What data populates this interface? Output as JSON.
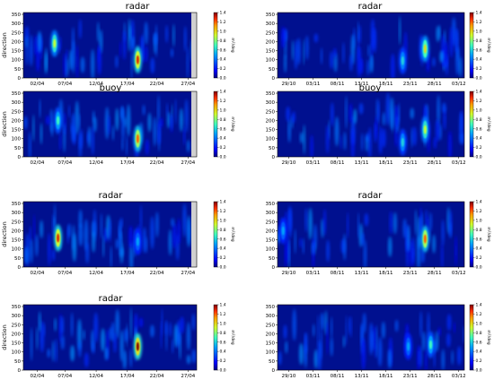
{
  "chart_data": [
    {
      "type": "heatmap",
      "title": "radar",
      "ylabel": "direction",
      "cb_label": "m²/deg",
      "ylim": [
        0,
        360
      ],
      "clim": [
        0,
        1.4
      ],
      "yticks": [
        "0",
        "50",
        "100",
        "150",
        "200",
        "250",
        "300",
        "350"
      ],
      "xticks": [
        "02/04",
        "07/04",
        "12/04",
        "17/04",
        "22/04",
        "27/04"
      ],
      "cbticks": [
        "0.0",
        "0.2",
        "0.4",
        "0.6",
        "0.8",
        "1.0",
        "1.2",
        "1.4"
      ],
      "hotspots": [
        {
          "date": "04/04",
          "direction": 190,
          "value": 0.9
        },
        {
          "date": "17/04",
          "direction": 100,
          "value": 1.3
        }
      ]
    },
    {
      "type": "heatmap",
      "title": "radar",
      "ylabel": "",
      "cb_label": "m²/deg",
      "ylim": [
        0,
        360
      ],
      "clim": [
        0,
        1.4
      ],
      "yticks": [
        "0",
        "50",
        "100",
        "150",
        "200",
        "250",
        "300",
        "350"
      ],
      "xticks": [
        "29/10",
        "03/11",
        "08/11",
        "13/11",
        "18/11",
        "23/11",
        "28/11",
        "03/12"
      ],
      "cbticks": [
        "0.0",
        "0.2",
        "0.4",
        "0.6",
        "0.8",
        "1.0",
        "1.2",
        "1.4"
      ],
      "hotspots": [
        {
          "date": "27/11",
          "direction": 160,
          "value": 1.0
        },
        {
          "date": "22/11",
          "direction": 95,
          "value": 0.6
        }
      ]
    },
    {
      "type": "heatmap",
      "title": "buoy",
      "ylabel": "direction",
      "cb_label": "m²/deg",
      "ylim": [
        0,
        360
      ],
      "clim": [
        0,
        1.4
      ],
      "yticks": [
        "0",
        "50",
        "100",
        "150",
        "200",
        "250",
        "300",
        "350"
      ],
      "xticks": [
        "02/04",
        "07/04",
        "12/04",
        "17/04",
        "22/04",
        "27/04"
      ],
      "cbticks": [
        "0.0",
        "0.2",
        "0.4",
        "0.6",
        "0.8",
        "1.0",
        "1.2",
        "1.4"
      ],
      "hotspots": [
        {
          "date": "05/04",
          "direction": 200,
          "value": 0.7
        },
        {
          "date": "17/04",
          "direction": 100,
          "value": 1.2
        }
      ]
    },
    {
      "type": "heatmap",
      "title": "buoy",
      "ylabel": "",
      "cb_label": "m²/deg",
      "ylim": [
        0,
        360
      ],
      "clim": [
        0,
        1.4
      ],
      "yticks": [
        "0",
        "50",
        "100",
        "150",
        "200",
        "250",
        "300",
        "350"
      ],
      "xticks": [
        "29/10",
        "03/11",
        "08/11",
        "13/11",
        "18/11",
        "23/11",
        "28/11",
        "03/12"
      ],
      "cbticks": [
        "0.0",
        "0.2",
        "0.4",
        "0.6",
        "0.8",
        "1.0",
        "1.2",
        "1.4"
      ],
      "hotspots": [
        {
          "date": "27/11",
          "direction": 150,
          "value": 0.9
        },
        {
          "date": "22/11",
          "direction": 80,
          "value": 0.6
        }
      ]
    },
    {
      "type": "heatmap",
      "title": "radar",
      "ylabel": "direction",
      "cb_label": "m²/deg",
      "ylim": [
        0,
        360
      ],
      "clim": [
        0,
        1.4
      ],
      "yticks": [
        "0",
        "50",
        "100",
        "150",
        "200",
        "250",
        "300",
        "350"
      ],
      "xticks": [
        "02/04",
        "07/04",
        "12/04",
        "17/04",
        "22/04",
        "27/04"
      ],
      "cbticks": [
        "0.0",
        "0.2",
        "0.4",
        "0.6",
        "0.8",
        "1.0",
        "1.2",
        "1.4"
      ],
      "hotspots": [
        {
          "date": "05/04",
          "direction": 160,
          "value": 1.3
        },
        {
          "date": "17/04",
          "direction": 140,
          "value": 0.5
        }
      ]
    },
    {
      "type": "heatmap",
      "title": "radar",
      "ylabel": "",
      "cb_label": "m²/deg",
      "ylim": [
        0,
        360
      ],
      "clim": [
        0,
        1.4
      ],
      "yticks": [
        "0",
        "50",
        "100",
        "150",
        "200",
        "250",
        "300",
        "350"
      ],
      "xticks": [
        "29/10",
        "03/11",
        "08/11",
        "13/11",
        "18/11",
        "23/11",
        "28/11",
        "03/12"
      ],
      "cbticks": [
        "0.0",
        "0.2",
        "0.4",
        "0.6",
        "0.8",
        "1.0",
        "1.2",
        "1.4"
      ],
      "hotspots": [
        {
          "date": "27/11",
          "direction": 155,
          "value": 1.2
        },
        {
          "date": "29/10",
          "direction": 200,
          "value": 0.5
        }
      ]
    },
    {
      "type": "heatmap",
      "title": "radar",
      "ylabel": "direction",
      "cb_label": "m²/deg",
      "ylim": [
        0,
        360
      ],
      "clim": [
        0,
        1.4
      ],
      "yticks": [
        "0",
        "50",
        "100",
        "150",
        "200",
        "250",
        "300",
        "350"
      ],
      "xticks": [
        "02/04",
        "07/04",
        "12/04",
        "17/04",
        "22/04",
        "27/04"
      ],
      "cbticks": [
        "0.0",
        "0.2",
        "0.4",
        "0.6",
        "0.8",
        "1.0",
        "1.2",
        "1.4"
      ],
      "hotspots": [
        {
          "date": "17/04",
          "direction": 130,
          "value": 1.4
        }
      ]
    },
    {
      "type": "heatmap",
      "title": "",
      "ylabel": "",
      "cb_label": "m²/deg",
      "ylim": [
        0,
        360
      ],
      "clim": [
        0,
        1.4
      ],
      "yticks": [
        "0",
        "50",
        "100",
        "150",
        "200",
        "250",
        "300",
        "350"
      ],
      "xticks": [
        "29/10",
        "03/11",
        "08/11",
        "13/11",
        "18/11",
        "23/11",
        "28/11",
        "03/12"
      ],
      "cbticks": [
        "0.0",
        "0.2",
        "0.4",
        "0.6",
        "0.8",
        "1.0",
        "1.2",
        "1.4"
      ],
      "hotspots": [
        {
          "date": "28/11",
          "direction": 140,
          "value": 0.7
        },
        {
          "date": "23/11",
          "direction": 130,
          "value": 0.5
        }
      ]
    }
  ]
}
